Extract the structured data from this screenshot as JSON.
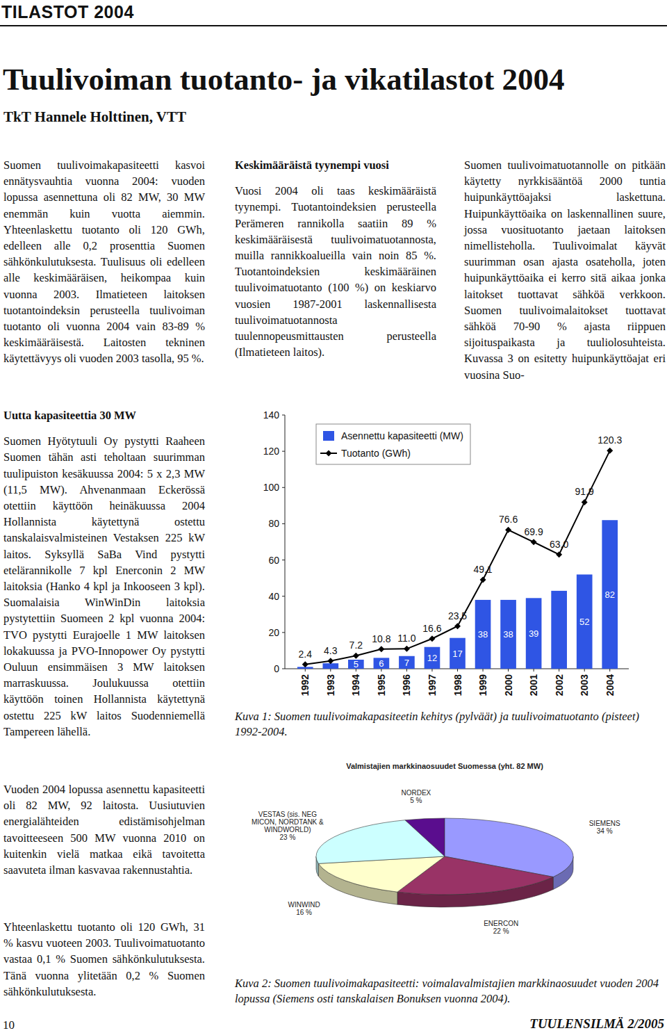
{
  "header": {
    "section": "TILASTOT 2004",
    "title": "Tuulivoiman tuotanto- ja vikatilastot 2004",
    "author": "TkT Hannele Holttinen, VTT"
  },
  "text_blocks": [
    {
      "paragraphs": [
        "Suomen tuulivoimakapasiteetti kasvoi ennätysvauhtia vuonna 2004: vuoden lopussa asennettuna oli 82 MW, 30 MW enemmän kuin vuotta aiemmin. Yhteenlaskettu tuotanto oli 120 GWh, edelleen alle 0,2 prosenttia Suomen sähkönkulutuksesta. Tuulisuus oli edelleen alle keskimääräisen, heikompaa kuin vuonna 2003. Ilmatieteen laitoksen tuotantoindeksin perusteella tuulivoiman tuotanto oli vuonna 2004 vain 83-89 % keskimääräisestä. Laitosten tekninen käytettävyys oli vuoden 2003 tasolla, 95 %."
      ]
    },
    {
      "heading": "Keskimääräistä tyynempi vuosi",
      "paragraphs": [
        "Vuosi 2004 oli taas keskimääräistä tyynempi. Tuotantoindeksien perusteella Perämeren rannikolla saatiin 89 % keskimääräisestä tuulivoimatuotannosta, muilla rannikkoalueilla vain noin 85 %. Tuotantoindeksien keskimääräinen tuulivoimatuotanto (100 %) on keskiarvo vuosien 1987-2001 laskennallisesta tuulivoimatuotannosta tuulennopeusmittausten perusteella (Ilmatieteen laitos)."
      ]
    },
    {
      "paragraphs": [
        "Suomen tuulivoimatuotannolle on pitkään käytetty nyrkkisääntöä 2000 tuntia huipunkäyttöajaksi laskettuna. Huipunkäyttöaika on laskennallinen suure, jossa vuosituotanto jaetaan laitoksen nimellisteholla. Tuulivoimalat käyvät suurimman osan ajasta osateholla, joten huipunkäyttöaika ei kerro sitä aikaa jonka laitokset tuottavat sähköä verkkoon. Suomen tuulivoimalaitokset tuottavat sähköä 70-90 % ajasta riippuen sijoituspaikasta ja tuuliolosuhteista. Kuvassa 3 on esitetty huipunkäyttöajat eri vuosina Suo-"
      ]
    },
    {
      "heading": "Uutta kapasiteettia 30 MW",
      "paragraphs": [
        "Suomen Hyötytuuli Oy pystytti Raaheen Suomen tähän asti teholtaan suurimman tuulipuiston kesäkuussa 2004: 5 x 2,3 MW (11,5 MW). Ahvenanmaan Eckerössä otettiin käyttöön heinäkuussa 2004 Hollannista käytettynä ostettu tanskalaisvalmisteinen Vestaksen 225 kW laitos. Syksyllä SaBa Vind pystytti etelärannikolle 7 kpl Enerconin 2 MW laitoksia (Hanko 4 kpl ja Inkooseen 3 kpl). Suomalaisia WinWinDin laitoksia pystytettiin Suomeen 2 kpl vuonna 2004: TVO pystytti Eurajoelle 1 MW laitoksen lokakuussa ja PVO-Innopower Oy pystytti Ouluun ensimmäisen 3 MW laitoksen marraskuussa. Joulukuussa otettiin käyttöön toinen Hollannista käytettynä ostettu 225 kW laitos Suodenniemellä Tampereen lähellä."
      ]
    },
    {
      "paragraphs": [
        "Vuoden 2004 lopussa asennettu kapasiteetti oli 82 MW, 92 laitosta. Uusiutuvien energialähteiden edistämisohjelman tavoitteeseen 500 MW vuonna 2010 on kuitenkin vielä matkaa eikä tavoitetta saavuteta ilman kasvavaa rakennustahtia."
      ]
    },
    {
      "paragraphs": [
        "Yhteenlaskettu tuotanto oli 120 GWh, 31 % kasvu vuoteen 2003. Tuulivoimatuotanto vastaa 0,1 % Suomen sähkönkulutuksesta. Tänä vuonna ylitetään 0,2 % Suomen sähkönkulutuksesta."
      ]
    }
  ],
  "captions": [
    "Kuva 1: Suomen tuulivoimakapasiteetin kehitys (pylväät) ja tuulivoimatuotanto (pisteet) 1992-2004.",
    "Kuva 2: Suomen tuulivoimakapasiteetti: voimalavalmistajien markkinaosuudet vuoden 2004 lopussa (Siemens osti tanskalaisen Bonuksen vuonna 2004)."
  ],
  "footer": {
    "page": "10",
    "publication": "TUULENSILMÄ 2/2005"
  },
  "chart_data": [
    {
      "type": "bar",
      "categories": [
        "1992",
        "1993",
        "1994",
        "1995",
        "1996",
        "1997",
        "1998",
        "1999",
        "2000",
        "2001",
        "2002",
        "2003",
        "2004"
      ],
      "series": [
        {
          "name": "Asennettu kapasiteetti (MW)",
          "type": "bar",
          "color": "#2f55e4",
          "values": [
            1,
            3,
            5,
            6,
            7,
            12,
            17,
            38,
            38,
            39,
            43,
            52,
            82
          ],
          "value_labels": [
            null,
            null,
            "5",
            "6",
            "7",
            "12",
            "17",
            "38",
            "38",
            "39",
            null,
            "52",
            "82"
          ]
        },
        {
          "name": "Tuotanto (GWh)",
          "type": "line",
          "color": "#000000",
          "marker": "diamond",
          "line_style": "solid",
          "values": [
            2.4,
            4.3,
            7.2,
            10.8,
            11.0,
            16.6,
            23.5,
            49.1,
            76.6,
            69.9,
            63.0,
            91.9,
            120.3
          ],
          "value_labels": [
            "2.4",
            "4.3",
            "7.2",
            "10.8",
            "11.0",
            "16.6",
            "23.5",
            "49.1",
            "76.6",
            "69.9",
            "63.0",
            "91.9",
            "120.3"
          ]
        }
      ],
      "ylim": [
        0,
        140
      ],
      "yticks": [
        0,
        20,
        40,
        60,
        80,
        100,
        120,
        140
      ],
      "grid": false,
      "legend": "upper left",
      "data_labels": true
    },
    {
      "type": "pie",
      "title": "Valmistajien markkinaosuudet Suomessa (yht. 82 MW)",
      "categories": [
        "NORDEX",
        "SIEMENS",
        "ENERCON",
        "WINWIND",
        "VESTAS (sis. NEG MICON, NORDTANK & WINDWORLD)"
      ],
      "values": [
        5,
        34,
        22,
        16,
        23
      ],
      "value_labels": [
        "5 %",
        "34 %",
        "22 %",
        "16 %",
        "23 %"
      ],
      "colors": [
        "#5a0d8e",
        "#9999ff",
        "#993366",
        "#ffffcc",
        "#ccffff"
      ],
      "data_labels": true
    }
  ]
}
